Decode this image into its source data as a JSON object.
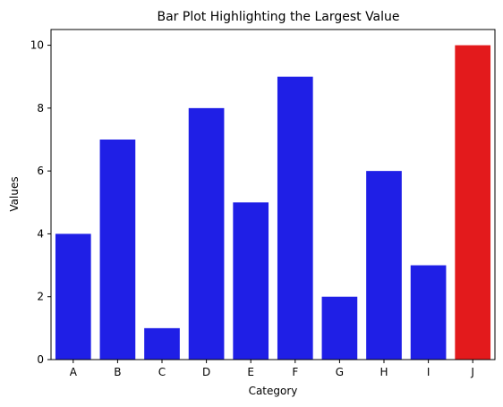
{
  "chart_data": {
    "type": "bar",
    "title": "Bar Plot Highlighting the Largest Value",
    "xlabel": "Category",
    "ylabel": "Values",
    "categories": [
      "A",
      "B",
      "C",
      "D",
      "E",
      "F",
      "G",
      "H",
      "I",
      "J"
    ],
    "values": [
      4,
      7,
      1,
      8,
      5,
      9,
      2,
      6,
      3,
      10
    ],
    "ylim": [
      0,
      10.5
    ],
    "yticks": [
      0,
      2,
      4,
      6,
      8,
      10
    ],
    "grid": false,
    "legend": "none",
    "colors": {
      "default": "#1f1fe6",
      "highlight": "#e31a1c"
    },
    "highlight_category": "J"
  }
}
